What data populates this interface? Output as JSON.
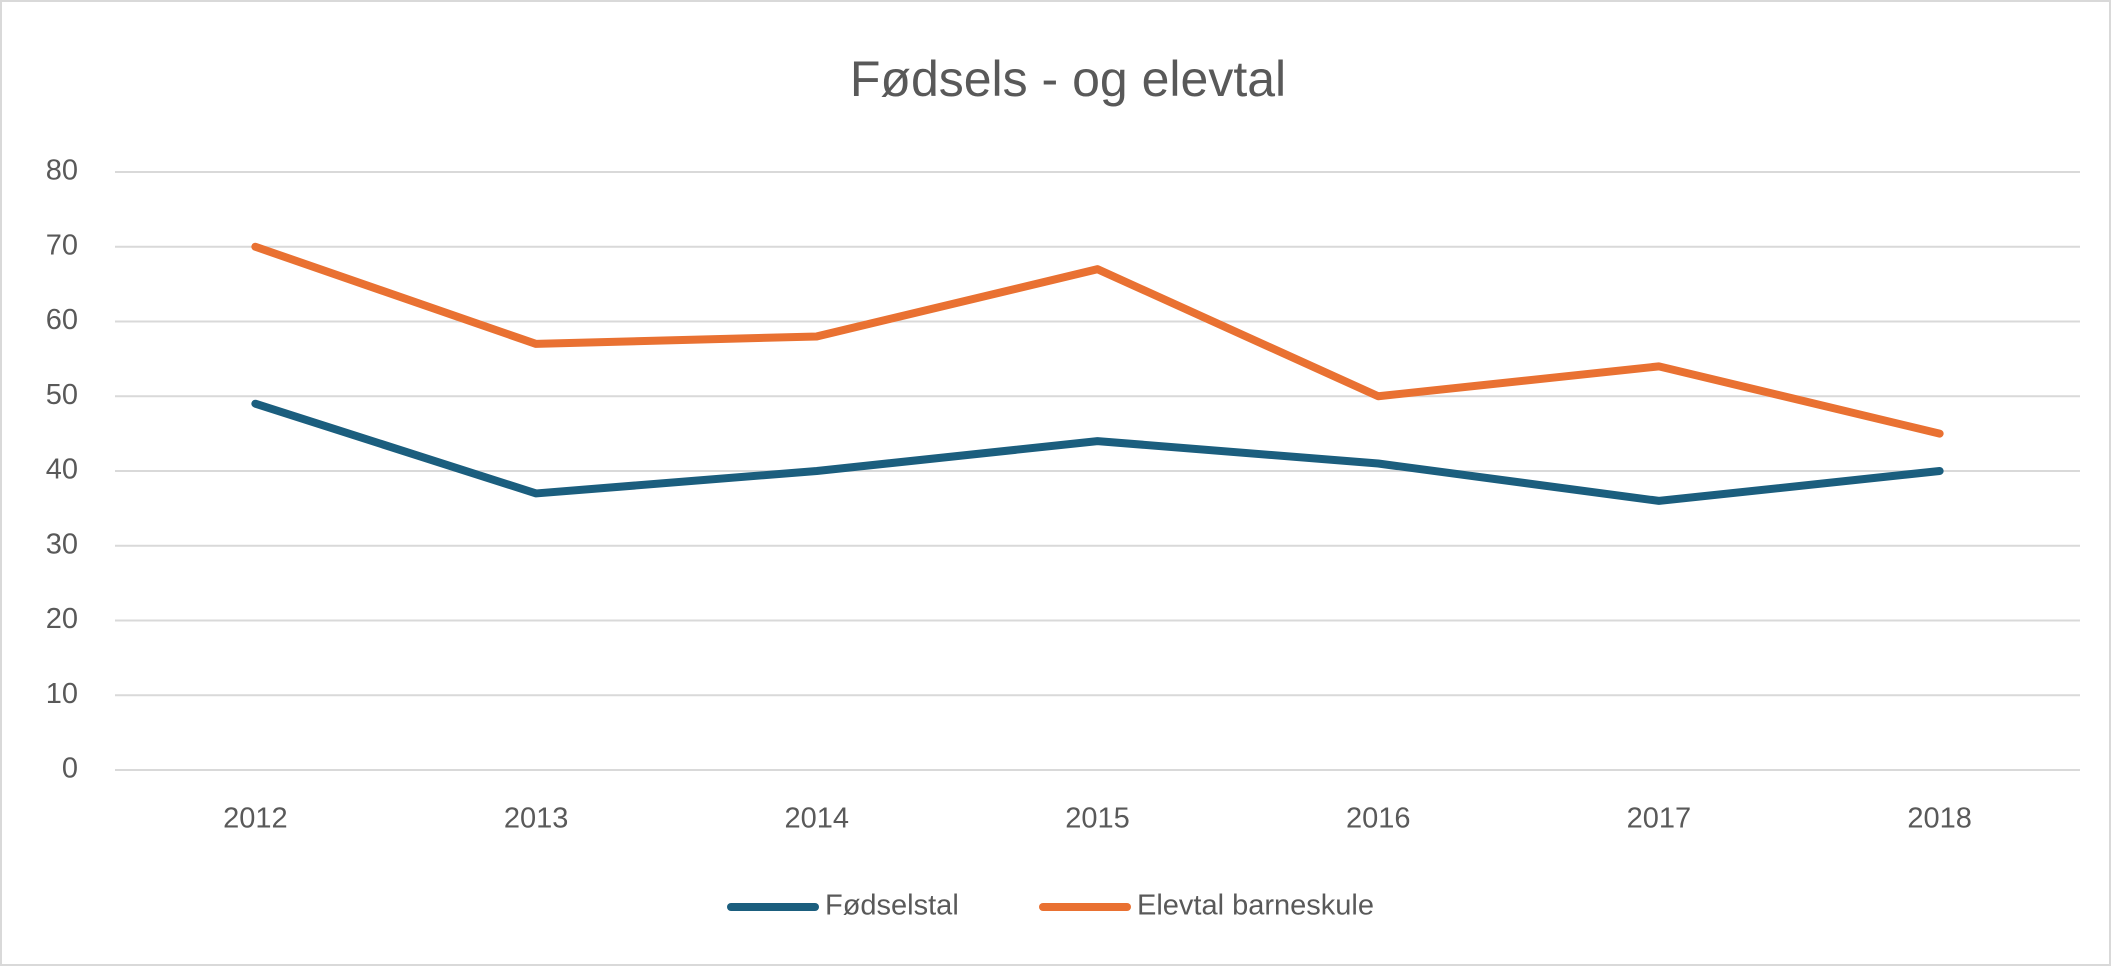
{
  "chart_data": {
    "type": "line",
    "title": "Fødsels - og elevtal",
    "categories": [
      "2012",
      "2013",
      "2014",
      "2015",
      "2016",
      "2017",
      "2018"
    ],
    "series": [
      {
        "name": "Fødselstal",
        "color": "#1b5e7e",
        "values": [
          49,
          37,
          40,
          44,
          41,
          36,
          40
        ]
      },
      {
        "name": "Elevtal barneskule",
        "color": "#e97132",
        "values": [
          70,
          57,
          58,
          67,
          50,
          54,
          45
        ]
      }
    ],
    "ylim": [
      0,
      80
    ],
    "yticks": [
      0,
      10,
      20,
      30,
      40,
      50,
      60,
      70,
      80
    ],
    "grid": true,
    "legend": "bottom"
  }
}
